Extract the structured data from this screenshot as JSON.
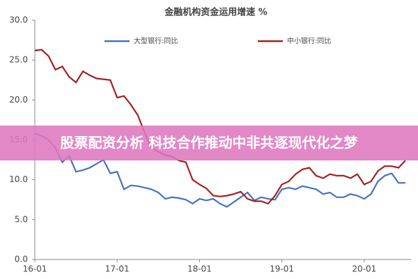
{
  "chart_data": {
    "type": "line",
    "title": "金融机构资金运用增速 %",
    "categories": [
      "16-01",
      null,
      null,
      null,
      null,
      null,
      null,
      null,
      null,
      null,
      null,
      null,
      "17-01",
      null,
      null,
      null,
      null,
      null,
      null,
      null,
      null,
      null,
      null,
      null,
      "18-01",
      null,
      null,
      null,
      null,
      null,
      null,
      null,
      null,
      null,
      null,
      null,
      "19-01",
      null,
      null,
      null,
      null,
      null,
      null,
      null,
      null,
      null,
      null,
      null,
      "20-01",
      null,
      null,
      null,
      null,
      null,
      null
    ],
    "series": [
      {
        "name": "大型银行:同比",
        "color": "#4472c4",
        "values": [
          15.8,
          15.5,
          15.0,
          14.0,
          12.2,
          13.0,
          11.0,
          11.2,
          11.5,
          12.0,
          12.5,
          10.8,
          11.0,
          8.8,
          9.3,
          9.2,
          9.0,
          8.8,
          8.4,
          7.6,
          7.8,
          7.7,
          7.5,
          7.0,
          7.6,
          7.4,
          7.6,
          7.0,
          6.6,
          7.2,
          7.8,
          8.4,
          7.4,
          7.8,
          7.6,
          7.5,
          8.8,
          9.0,
          8.8,
          9.2,
          9.0,
          8.8,
          8.2,
          8.4,
          7.8,
          7.8,
          8.2,
          8.0,
          7.6,
          8.2,
          9.8,
          10.5,
          10.8,
          9.6,
          9.6
        ]
      },
      {
        "name": "中小银行:同比",
        "color": "#a5201f",
        "values": [
          26.2,
          26.3,
          25.5,
          23.8,
          24.2,
          22.9,
          22.2,
          23.6,
          23.1,
          22.7,
          22.6,
          22.5,
          20.3,
          20.5,
          19.4,
          18.1,
          15.9,
          14.0,
          13.5,
          13.1,
          12.9,
          12.4,
          12.2,
          10.0,
          9.4,
          8.9,
          8.0,
          7.9,
          8.0,
          8.2,
          8.5,
          7.6,
          7.3,
          7.3,
          7.0,
          8.0,
          9.4,
          9.8,
          10.7,
          11.3,
          11.5,
          10.5,
          10.2,
          10.7,
          10.5,
          10.5,
          10.2,
          10.7,
          9.4,
          9.8,
          11.1,
          11.7,
          11.7,
          11.5,
          12.4
        ]
      }
    ],
    "ylim": [
      0,
      30
    ],
    "yticks": [
      {
        "value": 0,
        "label": "0.0"
      },
      {
        "value": 5,
        "label": "5.0"
      },
      {
        "value": 10,
        "label": "10.0"
      },
      {
        "value": 15,
        "label": "15.0"
      },
      {
        "value": 20,
        "label": "20.0"
      },
      {
        "value": 25,
        "label": "25.0"
      },
      {
        "value": 30,
        "label": "30.0"
      }
    ],
    "grid": false
  },
  "banner": "股票配资分析 科技合作推动中非共逐现代化之梦"
}
